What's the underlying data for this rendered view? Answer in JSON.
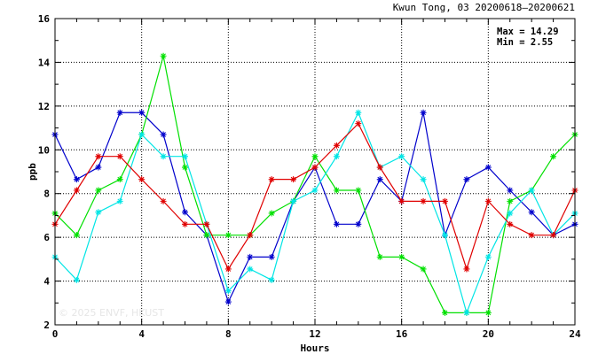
{
  "chart_data": {
    "type": "line",
    "title": "Kwun Tong, 03 20200618–20200621",
    "xlabel": "Hours",
    "ylabel": "ppb",
    "xlim": [
      0,
      24
    ],
    "ylim": [
      2,
      16
    ],
    "xticks": [
      0,
      4,
      8,
      12,
      16,
      20,
      24
    ],
    "yticks": [
      2,
      4,
      6,
      8,
      10,
      12,
      14,
      16
    ],
    "grid": true,
    "stats": {
      "max": "Max = 14.29",
      "min": "Min =  2.55"
    },
    "watermark": "© 2025  ENVF, HKUST",
    "x": [
      0,
      1,
      2,
      3,
      4,
      5,
      6,
      7,
      8,
      9,
      10,
      11,
      12,
      13,
      14,
      15,
      16,
      17,
      18,
      19,
      20,
      21,
      22,
      23,
      24
    ],
    "series": [
      {
        "color": "#0000cc",
        "values": [
          10.7,
          8.65,
          9.2,
          11.7,
          11.7,
          10.7,
          7.15,
          6.1,
          3.05,
          5.1,
          5.1,
          7.65,
          9.2,
          6.6,
          6.6,
          8.65,
          7.65,
          11.7,
          6.1,
          8.65,
          9.2,
          8.15,
          7.15,
          6.1,
          6.6
        ]
      },
      {
        "color": "#00e000",
        "values": [
          7.1,
          6.1,
          8.15,
          8.65,
          10.7,
          14.29,
          9.2,
          6.1,
          6.1,
          6.1,
          7.1,
          7.65,
          9.7,
          8.15,
          8.15,
          5.1,
          5.1,
          4.55,
          2.55,
          2.55,
          2.55,
          7.65,
          8.15,
          9.7,
          10.7
        ]
      },
      {
        "color": "#00e5e5",
        "values": [
          5.1,
          4.05,
          7.15,
          7.65,
          10.7,
          9.7,
          9.7,
          6.6,
          3.55,
          4.55,
          4.05,
          7.65,
          8.15,
          9.7,
          11.7,
          9.2,
          9.7,
          8.65,
          6.1,
          2.55,
          5.1,
          7.1,
          8.15,
          6.1,
          7.1
        ]
      },
      {
        "color": "#e00000",
        "values": [
          6.6,
          8.15,
          9.7,
          9.7,
          8.65,
          7.65,
          6.6,
          6.6,
          4.55,
          6.1,
          8.65,
          8.65,
          9.2,
          10.2,
          11.2,
          9.2,
          7.65,
          7.65,
          7.65,
          4.55,
          7.65,
          6.6,
          6.1,
          6.1,
          8.15
        ]
      }
    ]
  }
}
